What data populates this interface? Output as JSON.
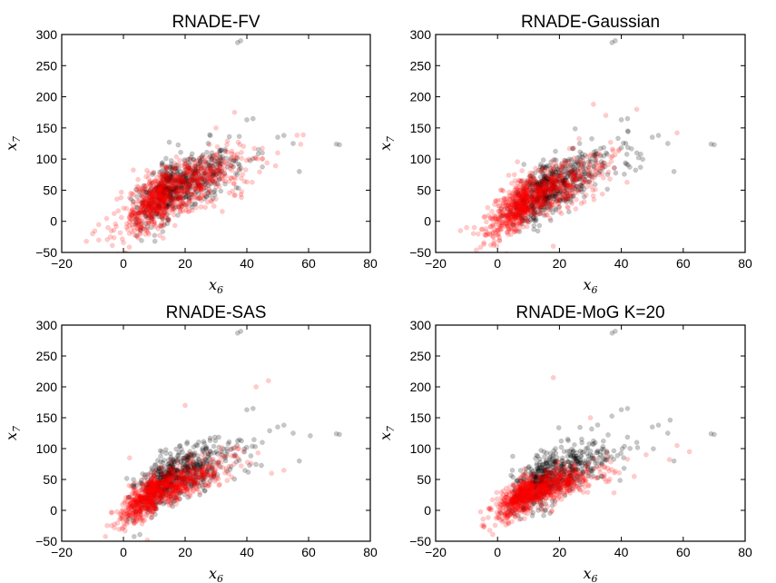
{
  "chart_data": [
    {
      "type": "scatter",
      "title": "RNADE-FV",
      "xlabel_var": "x",
      "xlabel_sub": "6",
      "ylabel_var": "x",
      "ylabel_sub": "7",
      "xlim": [
        -20,
        80
      ],
      "ylim": [
        -50,
        300
      ],
      "xticks": [
        -20,
        0,
        20,
        40,
        60,
        80
      ],
      "yticks": [
        -50,
        0,
        50,
        100,
        150,
        200,
        250,
        300
      ],
      "grid": false,
      "series": [
        {
          "color": "#000000",
          "opacity": 0.22,
          "center": [
            16,
            55
          ],
          "spread": [
            8,
            28
          ],
          "corr": 0.7,
          "count": 600,
          "extra": [
            [
              38,
              290
            ],
            [
              37,
              287
            ],
            [
              69,
              124
            ],
            [
              70,
              123
            ],
            [
              50,
              135
            ],
            [
              52,
              138
            ],
            [
              45,
              110
            ],
            [
              55,
              125
            ],
            [
              57,
              80
            ],
            [
              42,
              165
            ],
            [
              40,
              163
            ]
          ]
        },
        {
          "color": "#ff0000",
          "opacity": 0.2,
          "center": [
            14,
            45
          ],
          "spread": [
            10,
            32
          ],
          "corr": 0.75,
          "count": 900,
          "extra": [
            [
              -12,
              -32
            ],
            [
              -10,
              -20
            ],
            [
              -5,
              -10
            ],
            [
              36,
              175
            ],
            [
              30,
              150
            ],
            [
              50,
              110
            ],
            [
              45,
              100
            ],
            [
              -8,
              -30
            ]
          ]
        }
      ]
    },
    {
      "type": "scatter",
      "title": "RNADE-Gaussian",
      "xlabel_var": "x",
      "xlabel_sub": "6",
      "ylabel_var": "x",
      "ylabel_sub": "7",
      "xlim": [
        -20,
        80
      ],
      "ylim": [
        -50,
        300
      ],
      "xticks": [
        -20,
        0,
        20,
        40,
        60,
        80
      ],
      "yticks": [
        -50,
        0,
        50,
        100,
        150,
        200,
        250,
        300
      ],
      "grid": false,
      "series": [
        {
          "color": "#000000",
          "opacity": 0.22,
          "center": [
            16,
            55
          ],
          "spread": [
            8,
            28
          ],
          "corr": 0.7,
          "count": 600,
          "extra": [
            [
              38,
              290
            ],
            [
              37,
              287
            ],
            [
              69,
              124
            ],
            [
              70,
              123
            ],
            [
              50,
              135
            ],
            [
              52,
              138
            ],
            [
              45,
              110
            ],
            [
              55,
              125
            ],
            [
              57,
              80
            ],
            [
              42,
              165
            ],
            [
              40,
              163
            ]
          ]
        },
        {
          "color": "#ff0000",
          "opacity": 0.2,
          "center": [
            10,
            38
          ],
          "spread": [
            9,
            30
          ],
          "corr": 0.78,
          "count": 900,
          "extra": [
            [
              -12,
              -15
            ],
            [
              -10,
              -10
            ],
            [
              31,
              188
            ],
            [
              45,
              180
            ],
            [
              58,
              142
            ],
            [
              18,
              -40
            ],
            [
              35,
              170
            ]
          ]
        }
      ]
    },
    {
      "type": "scatter",
      "title": "RNADE-SAS",
      "xlabel_var": "x",
      "xlabel_sub": "6",
      "ylabel_var": "x",
      "ylabel_sub": "7",
      "xlim": [
        -20,
        80
      ],
      "ylim": [
        -50,
        300
      ],
      "xticks": [
        -20,
        0,
        20,
        40,
        60,
        80
      ],
      "yticks": [
        -50,
        0,
        50,
        100,
        150,
        200,
        250,
        300
      ],
      "grid": false,
      "series": [
        {
          "color": "#000000",
          "opacity": 0.22,
          "center": [
            16,
            55
          ],
          "spread": [
            8,
            28
          ],
          "corr": 0.7,
          "count": 600,
          "extra": [
            [
              38,
              290
            ],
            [
              37,
              287
            ],
            [
              69,
              124
            ],
            [
              70,
              123
            ],
            [
              50,
              135
            ],
            [
              52,
              138
            ],
            [
              45,
              110
            ],
            [
              55,
              125
            ],
            [
              57,
              80
            ],
            [
              42,
              165
            ],
            [
              40,
              163
            ]
          ]
        },
        {
          "color": "#ff0000",
          "opacity": 0.2,
          "center": [
            11,
            32
          ],
          "spread": [
            8,
            24
          ],
          "corr": 0.8,
          "count": 900,
          "extra": [
            [
              47,
              210
            ],
            [
              43,
              200
            ],
            [
              20,
              170
            ],
            [
              52,
              65
            ],
            [
              48,
              60
            ],
            [
              2,
              85
            ]
          ]
        }
      ]
    },
    {
      "type": "scatter",
      "title": "RNADE-MoG K=20",
      "xlabel_var": "x",
      "xlabel_sub": "6",
      "ylabel_var": "x",
      "ylabel_sub": "7",
      "xlim": [
        -20,
        80
      ],
      "ylim": [
        -50,
        300
      ],
      "xticks": [
        -20,
        0,
        20,
        40,
        60,
        80
      ],
      "yticks": [
        -50,
        0,
        50,
        100,
        150,
        200,
        250,
        300
      ],
      "grid": false,
      "series": [
        {
          "color": "#000000",
          "opacity": 0.22,
          "center": [
            16,
            55
          ],
          "spread": [
            8,
            28
          ],
          "corr": 0.7,
          "count": 600,
          "extra": [
            [
              38,
              290
            ],
            [
              37,
              287
            ],
            [
              69,
              124
            ],
            [
              70,
              123
            ],
            [
              50,
              135
            ],
            [
              52,
              138
            ],
            [
              45,
              110
            ],
            [
              55,
              125
            ],
            [
              57,
              80
            ],
            [
              42,
              165
            ],
            [
              40,
              163
            ]
          ]
        },
        {
          "color": "#ff0000",
          "opacity": 0.2,
          "center": [
            11,
            30
          ],
          "spread": [
            8,
            20
          ],
          "corr": 0.75,
          "count": 900,
          "extra": [
            [
              18,
              215
            ],
            [
              62,
              95
            ],
            [
              58,
              105
            ],
            [
              30,
              150
            ],
            [
              48,
              90
            ]
          ]
        }
      ]
    }
  ]
}
